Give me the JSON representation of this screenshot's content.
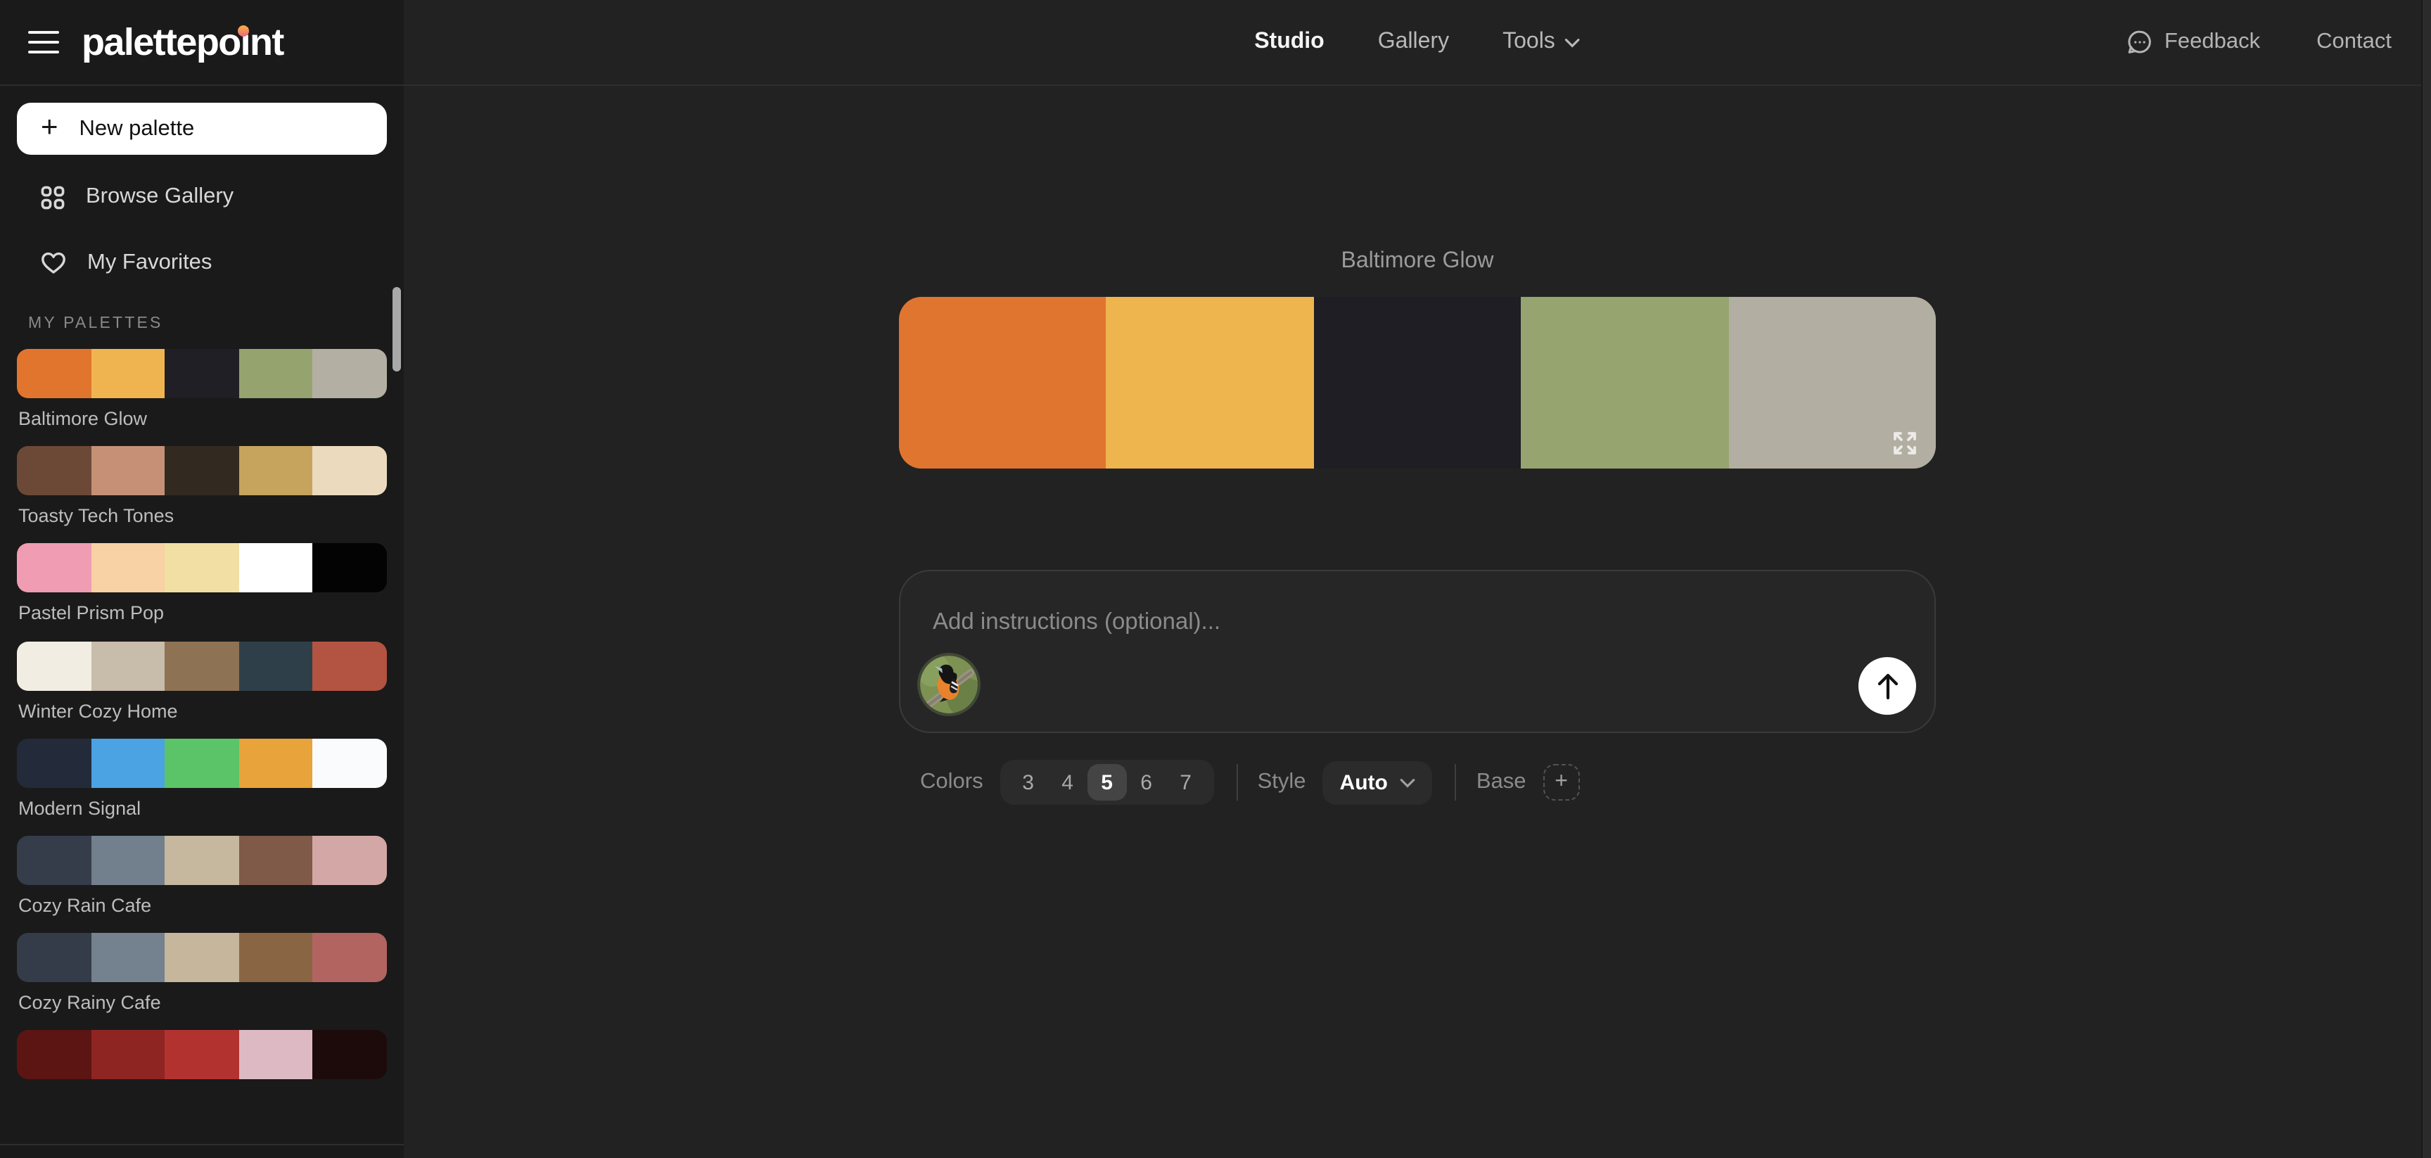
{
  "brand": {
    "name": "palettepoint",
    "dot_gradient": [
      "#f6a44c",
      "#ee6e79"
    ]
  },
  "topnav": {
    "items": [
      {
        "label": "Studio",
        "active": true,
        "has_dropdown": false
      },
      {
        "label": "Gallery",
        "active": false,
        "has_dropdown": false
      },
      {
        "label": "Tools",
        "active": false,
        "has_dropdown": true
      }
    ],
    "right_items": [
      {
        "label": "Feedback",
        "icon": "speech-bubble-icon"
      },
      {
        "label": "Contact",
        "icon": null
      }
    ]
  },
  "sidebar": {
    "actions": [
      {
        "label": "New palette",
        "icon": "plus-icon",
        "style": "primary"
      },
      {
        "label": "Browse Gallery",
        "icon": "grid-icon"
      },
      {
        "label": "My Favorites",
        "icon": "heart-icon"
      }
    ],
    "section_title": "MY PALETTES",
    "palettes": [
      {
        "name": "Baltimore Glow",
        "colors": [
          "#E2752E",
          "#EFB450",
          "#201F25",
          "#95A46F",
          "#B3B0A3"
        ]
      },
      {
        "name": "Toasty Tech Tones",
        "colors": [
          "#6C4937",
          "#C69077",
          "#322A20",
          "#C6A45D",
          "#EBDABE"
        ]
      },
      {
        "name": "Pastel Prism Pop",
        "colors": [
          "#F09CB2",
          "#F8D1A5",
          "#F2DFA3",
          "#FFFFFF",
          "#030303"
        ]
      },
      {
        "name": "Winter Cozy Home",
        "colors": [
          "#F2EDE3",
          "#C8BCAB",
          "#8E7254",
          "#2F3F49",
          "#B35341"
        ]
      },
      {
        "name": "Modern Signal",
        "colors": [
          "#232B3A",
          "#4BA3E3",
          "#5CC468",
          "#E8A33B",
          "#FAFBFC"
        ]
      },
      {
        "name": "Cozy Rain Cafe",
        "colors": [
          "#343D49",
          "#72808D",
          "#C5B89F",
          "#7F5A49",
          "#D3A7A5"
        ]
      },
      {
        "name": "Cozy Rainy Cafe",
        "colors": [
          "#333C48",
          "#74818E",
          "#C6B69B",
          "#8A6544",
          "#B26461"
        ]
      },
      {
        "name": "",
        "colors": [
          "#5C1512",
          "#8E2523",
          "#B23230",
          "#DDBAC3",
          "#1D0B0B"
        ]
      }
    ]
  },
  "studio": {
    "palette_title": "Baltimore Glow",
    "palette_colors": [
      "#E0752F",
      "#EEB44E",
      "#1E1E24",
      "#96A470",
      "#B2AFA2"
    ],
    "expand_icon": "expand-arrows-icon",
    "composer": {
      "placeholder": "Add instructions (optional)...",
      "avatar": "baltimore-oriole-photo",
      "submit_icon": "arrow-up-icon"
    },
    "controls": {
      "colors_label": "Colors",
      "color_counts": [
        "3",
        "4",
        "5",
        "6",
        "7"
      ],
      "selected_count": "5",
      "style_label": "Style",
      "style_value": "Auto",
      "base_label": "Base",
      "base_add_icon": "plus-icon"
    }
  }
}
